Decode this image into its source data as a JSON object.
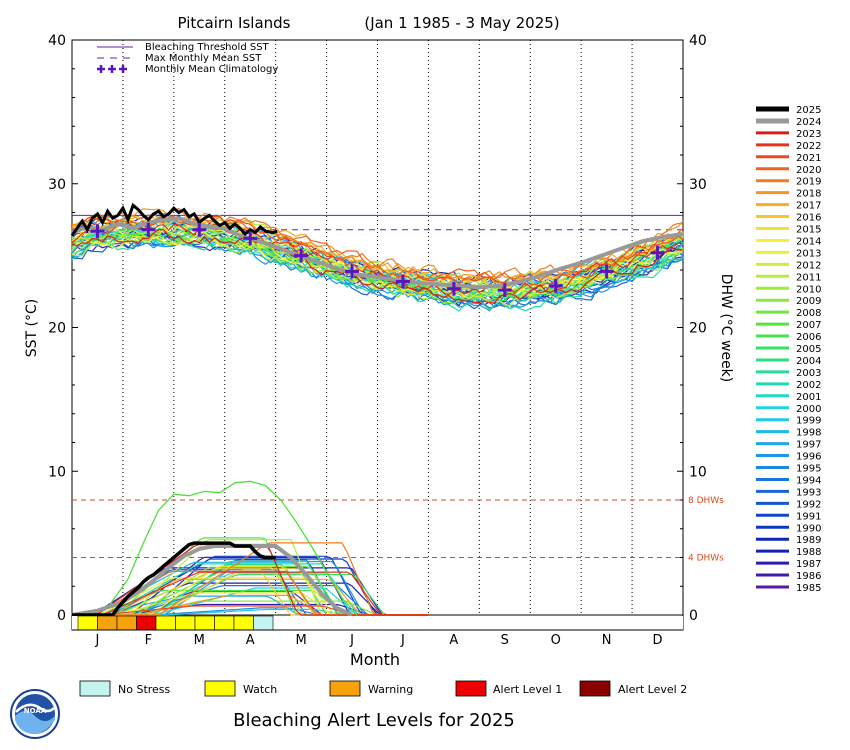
{
  "chart_data": {
    "type": "line",
    "title": "Pitcairn Islands",
    "date_range": "(Jan 1 1985 - 3 May 2025)",
    "xlabel": "Month",
    "ylabel_left": "SST (°C)",
    "ylabel_right": "DHW (°C week)",
    "ylim": [
      0,
      40
    ],
    "yticks": [
      0,
      10,
      20,
      30,
      40
    ],
    "months": [
      "J",
      "F",
      "M",
      "A",
      "M",
      "J",
      "J",
      "A",
      "S",
      "O",
      "N",
      "D"
    ],
    "grid": "vertical dotted lines at month boundaries",
    "reference_lines": [
      {
        "name": "Bleaching Threshold SST",
        "value": 27.8,
        "color": "#6a1fb0",
        "style": "solid"
      },
      {
        "name": "Max Monthly Mean SST",
        "value": 26.8,
        "color": "#6a1fb0",
        "style": "dashed"
      },
      {
        "name": "Monthly Mean Climatology",
        "color": "#5a17c0",
        "style": "plus-markers"
      }
    ],
    "climatology": [
      26.7,
      26.8,
      26.8,
      26.2,
      25.0,
      23.9,
      23.2,
      22.7,
      22.6,
      22.9,
      23.9,
      25.2
    ],
    "dhw_lines": [
      {
        "label": "8 DHWs",
        "value": 8,
        "color": "#d84a1e"
      },
      {
        "label": "4 DHWs",
        "value": 4,
        "color": "#d84a1e"
      }
    ],
    "series_years": [
      "2025",
      "2024",
      "2023",
      "2022",
      "2021",
      "2020",
      "2019",
      "2018",
      "2017",
      "2016",
      "2015",
      "2014",
      "2013",
      "2012",
      "2011",
      "2010",
      "2009",
      "2008",
      "2007",
      "2006",
      "2005",
      "2004",
      "2003",
      "2002",
      "2001",
      "2000",
      "1999",
      "1998",
      "1997",
      "1996",
      "1995",
      "1994",
      "1993",
      "1992",
      "1991",
      "1990",
      "1989",
      "1988",
      "1987",
      "1986",
      "1985"
    ],
    "series_colors": [
      "#000000",
      "#999999",
      "#dd1a1a",
      "#e8321d",
      "#ec4a1f",
      "#ef6322",
      "#f07c24",
      "#f29527",
      "#f4ae2a",
      "#f6c72d",
      "#f8e030",
      "#f6f039",
      "#e6f03a",
      "#cfee3a",
      "#b8ec3b",
      "#a0ea3c",
      "#88e83d",
      "#70e63e",
      "#59e440",
      "#44e24d",
      "#34e066",
      "#2cde80",
      "#27dc99",
      "#24dab2",
      "#22d8cb",
      "#22d4e0",
      "#21c8e8",
      "#1fb9e6",
      "#1ea9e4",
      "#1c99e2",
      "#1a88e0",
      "#1877de",
      "#1666d8",
      "#1456d0",
      "#1246c8",
      "#1036c0",
      "#0e26b8",
      "#1420b2",
      "#2a1eae",
      "#401caa",
      "#561aa6"
    ],
    "sst_2025": {
      "x": [
        0,
        0.1,
        0.2,
        0.3,
        0.4,
        0.5,
        0.6,
        0.7,
        0.8,
        0.9,
        1.0,
        1.1,
        1.2,
        1.3,
        1.4,
        1.5,
        1.6,
        1.7,
        1.8,
        1.9,
        2.0,
        2.1,
        2.2,
        2.3,
        2.4,
        2.5,
        2.6,
        2.7,
        2.8,
        2.9,
        3.0,
        3.1,
        3.2,
        3.3,
        3.4,
        3.5,
        3.6,
        3.7,
        3.8,
        3.95,
        4.03
      ],
      "y": [
        26.4,
        26.9,
        27.4,
        26.8,
        27.6,
        27.9,
        27.3,
        28.1,
        27.6,
        27.8,
        28.3,
        27.5,
        28.5,
        28.2,
        27.8,
        27.5,
        27.9,
        28.1,
        27.7,
        27.9,
        28.3,
        28.0,
        28.2,
        27.7,
        27.9,
        27.3,
        27.6,
        27.8,
        27.4,
        27.1,
        27.3,
        26.9,
        27.2,
        26.9,
        26.5,
        26.8,
        26.6,
        27.0,
        26.7,
        26.6,
        26.7
      ]
    },
    "sst_2024": {
      "x": [
        0,
        0.3,
        0.6,
        0.9,
        1.2,
        1.5,
        1.8,
        2.1,
        2.4,
        2.7,
        3.0,
        3.3,
        3.6,
        4.0,
        4.4,
        4.8,
        5.2,
        5.6,
        6.0,
        6.4,
        6.8,
        7.2,
        7.6,
        8.0,
        8.4,
        8.8,
        9.2,
        9.6,
        10.0,
        10.4,
        10.8,
        11.2,
        11.6,
        12.0
      ],
      "y": [
        26.6,
        27.0,
        26.8,
        27.2,
        26.9,
        27.3,
        27.5,
        27.6,
        27.2,
        27.0,
        26.9,
        26.4,
        26.1,
        25.6,
        25.1,
        24.6,
        24.1,
        23.7,
        23.5,
        23.3,
        23.1,
        23.0,
        22.9,
        22.8,
        22.9,
        23.2,
        23.6,
        24.1,
        24.5,
        25.0,
        25.5,
        26.0,
        26.3,
        26.5
      ]
    },
    "dhw_2025": {
      "x": [
        0,
        0.8,
        0.9,
        1.0,
        1.1,
        1.2,
        1.3,
        1.4,
        1.5,
        1.6,
        1.7,
        1.8,
        1.9,
        2.0,
        2.1,
        2.2,
        2.3,
        2.4,
        2.5,
        2.6,
        2.7,
        2.8,
        2.9,
        3.0,
        3.1,
        3.2,
        3.3,
        3.4,
        3.5,
        3.6,
        3.7,
        3.8,
        3.9,
        4.0
      ],
      "y": [
        0,
        0,
        0.5,
        0.9,
        1.3,
        1.6,
        1.9,
        2.3,
        2.6,
        2.8,
        3.1,
        3.4,
        3.7,
        4.0,
        4.3,
        4.6,
        4.9,
        5.0,
        5.0,
        5.0,
        5.0,
        5.0,
        5.0,
        5.0,
        5.0,
        4.8,
        4.8,
        4.8,
        4.8,
        4.4,
        4.1,
        4.0,
        4.0,
        4.0
      ]
    },
    "dhw_2024": {
      "x": [
        0,
        0.5,
        1.0,
        1.3,
        1.6,
        1.9,
        2.2,
        2.5,
        2.8,
        3.1,
        3.4,
        3.7,
        4.0,
        4.3,
        4.6,
        4.9,
        5.2,
        5.5
      ],
      "y": [
        0,
        0.3,
        0.9,
        1.6,
        2.4,
        3.3,
        4.1,
        4.6,
        4.8,
        4.8,
        4.8,
        4.8,
        4.8,
        4.0,
        2.8,
        1.5,
        0.5,
        0
      ]
    },
    "dhw_peak_2008": {
      "x": [
        0.7,
        1.1,
        1.4,
        1.7,
        2.0,
        2.3,
        2.6,
        2.9,
        3.2,
        3.5,
        3.8,
        4.1,
        4.4,
        4.7,
        5.0,
        5.3,
        5.6
      ],
      "y": [
        0.5,
        2.5,
        5.0,
        7.3,
        8.4,
        8.3,
        8.6,
        8.5,
        9.2,
        9.3,
        9.0,
        8.0,
        6.5,
        4.8,
        3.0,
        1.2,
        0
      ]
    },
    "alert_bar": {
      "levels": [
        "watch",
        "warning",
        "warning",
        "alert1",
        "watch",
        "watch",
        "watch",
        "watch",
        "watch",
        "nostress"
      ],
      "colors": {
        "nostress": "#c4f4f0",
        "watch": "#ffff00",
        "warning": "#f5a20c",
        "alert1": "#ee0000",
        "alert2": "#8b0000"
      }
    }
  },
  "legend": {
    "items": [
      "Bleaching Threshold SST",
      "Max Monthly Mean SST",
      "Monthly Mean Climatology"
    ]
  },
  "alert_legend": {
    "items": [
      {
        "label": "No Stress",
        "color": "#c4f4f0"
      },
      {
        "label": "Watch",
        "color": "#ffff00"
      },
      {
        "label": "Warning",
        "color": "#f5a20c"
      },
      {
        "label": "Alert Level 1",
        "color": "#ee0000"
      },
      {
        "label": "Alert Level 2",
        "color": "#8b0000"
      }
    ]
  },
  "footer": {
    "title": "Bleaching Alert Levels for 2025",
    "logo_text": "NOAA"
  }
}
